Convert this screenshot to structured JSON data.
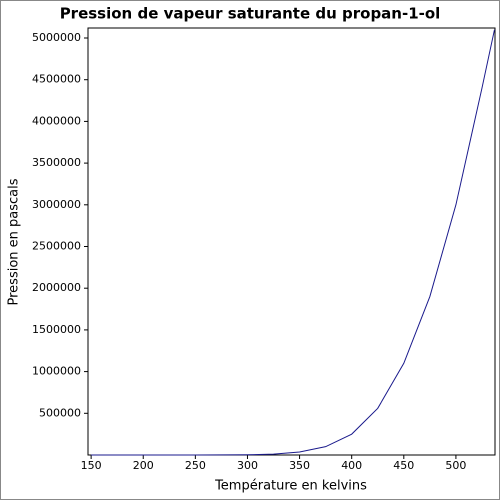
{
  "chart_data": {
    "type": "line",
    "title": "Pression de vapeur saturante du propan-1-ol",
    "xlabel": "Température en kelvins",
    "ylabel": "Pression en pascals",
    "x": [
      150,
      175,
      200,
      225,
      250,
      275,
      300,
      325,
      350,
      375,
      400,
      425,
      450,
      475,
      500,
      525,
      537
    ],
    "series": [
      {
        "color": "#1a1a8c",
        "values": [
          0,
          0,
          2,
          20,
          150,
          800,
          3000,
          10000,
          36000,
          100000,
          250000,
          560000,
          1100000,
          1900000,
          3000000,
          4400000,
          5100000
        ]
      }
    ],
    "xlim": [
      147,
      537.5
    ],
    "ylim": [
      0,
      5120000
    ],
    "xticks": [
      150,
      200,
      250,
      300,
      350,
      400,
      450,
      500
    ],
    "yticks": [
      500000,
      1000000,
      1500000,
      2000000,
      2500000,
      3000000,
      3500000,
      4000000,
      4500000,
      5000000
    ],
    "grid": false
  }
}
